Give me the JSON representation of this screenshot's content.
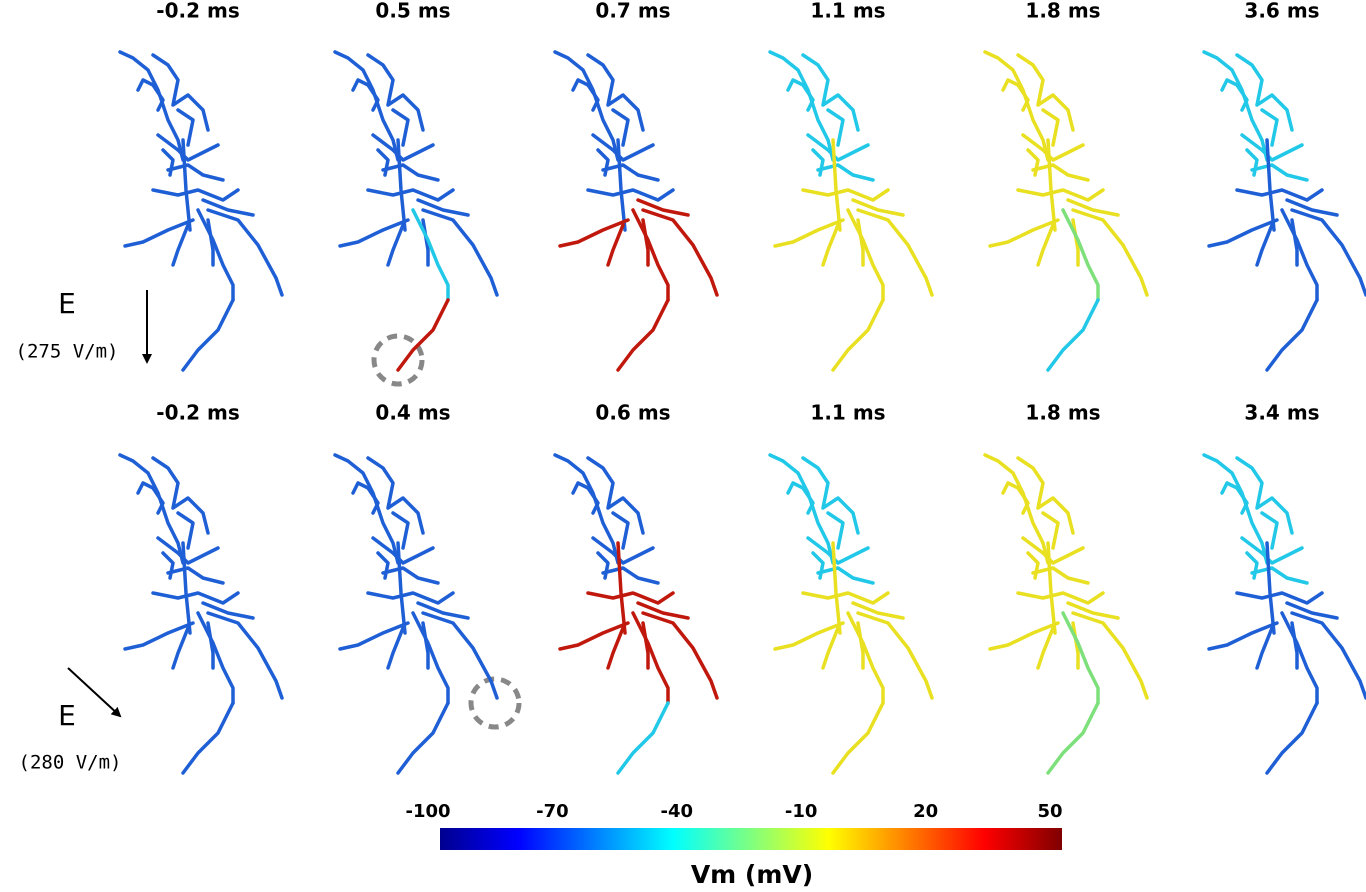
{
  "rows": [
    {
      "field": {
        "label": "E",
        "strength": "(275 V/m)"
      },
      "times": [
        "-0.2 ms",
        "0.5 ms",
        "0.7 ms",
        "1.1 ms",
        "1.8 ms",
        "3.6 ms"
      ]
    },
    {
      "field": {
        "label": "E",
        "strength": "(280 V/m)"
      },
      "times": [
        "-0.2 ms",
        "0.4 ms",
        "0.6 ms",
        "1.1 ms",
        "1.8 ms",
        "3.4 ms"
      ]
    }
  ],
  "colorbar": {
    "label": "Vm (mV)",
    "ticks": [
      -100,
      -70,
      -40,
      -10,
      20,
      50
    ]
  }
}
